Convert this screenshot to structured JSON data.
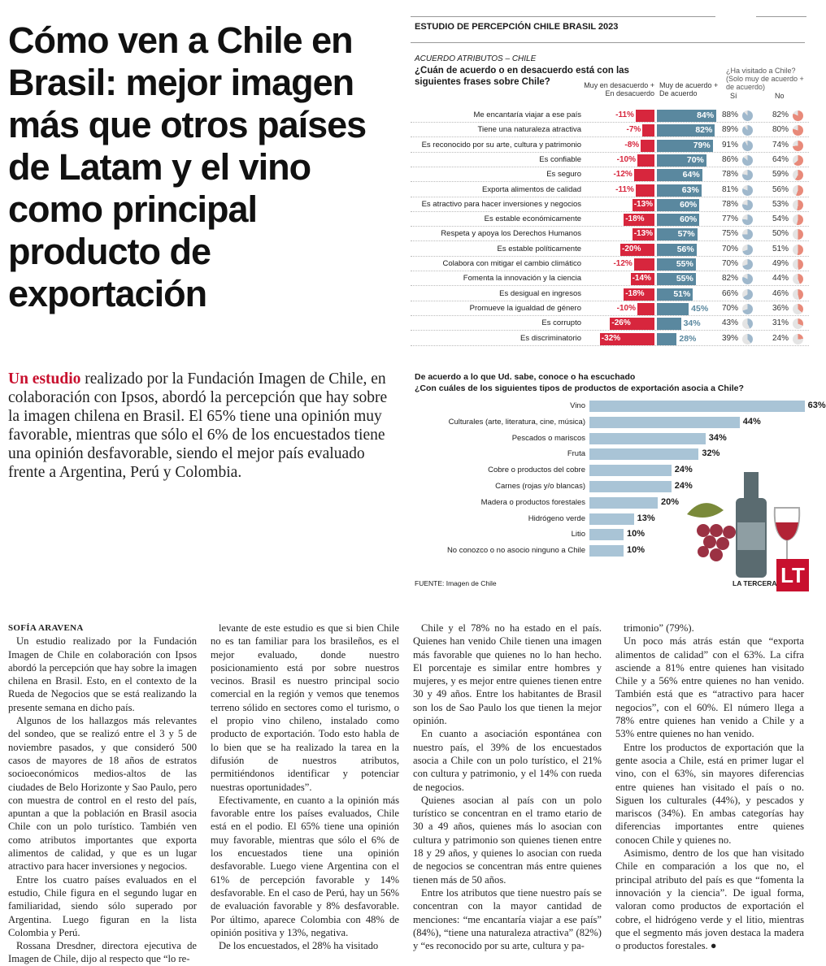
{
  "headline": "Cómo ven a Chile en Brasil: mejor imagen más que otros países de Latam y el vino como principal producto de exportación",
  "lead": {
    "kicker": "Un estudio",
    "text": " realizado por la Fundación Imagen de Chile, en colaboración con Ipsos, abordó la percepción que hay sobre la imagen chilena en Brasil. El 65% tiene una opinión muy favorable, mientras que sólo el 6% de los encuestados tiene una opinión desfavorable, siendo el mejor país evaluado frente a Argentina, Perú y Colombia."
  },
  "infographic": {
    "title": "ESTUDIO DE PERCEPCIÓN CHILE BRASIL 2023",
    "section": "ACUERDO ATRIBUTOS – CHILE",
    "question1": "¿Cuán de acuerdo o en desacuerdo está con las siguientes frases sobre Chile?",
    "col_neg": "Muy en desacuerdo + En desacuerdo",
    "col_pos": "Muy de acuerdo + De acuerdo",
    "col_visit": "¿Ha visitado a Chile? (Solo muy de acuerdo + de acuerdo)",
    "col_si": "Sí",
    "col_no": "No",
    "subtitle2": "De acuerdo a lo que Ud. sabe, conoce o ha escuchado",
    "question2": "¿Con cuáles de los siguientes tipos de productos de exportación asocia a Chile?",
    "source": "FUENTE: Imagen de Chile",
    "brand": "LA TERCERA",
    "logo": "LT",
    "colors": {
      "neg": "#d7263d",
      "pos": "#5a889f",
      "prod": "#a9c4d6",
      "pie_si": "#9fb8cc",
      "pie_no": "#e88a7a"
    }
  },
  "chart_data": [
    {
      "type": "bar",
      "title": "¿Cuán de acuerdo o en desacuerdo está con las siguientes frases sobre Chile?",
      "categories": [
        "Me encantaría viajar a ese país",
        "Tiene una naturaleza atractiva",
        "Es reconocido por su arte, cultura y patrimonio",
        "Es confiable",
        "Es seguro",
        "Exporta alimentos de calidad",
        "Es atractivo para hacer inversiones y negocios",
        "Es estable económicamente",
        "Respeta y apoya los Derechos Humanos",
        "Es estable políticamente",
        "Colabora con mitigar el cambio climático",
        "Fomenta la innovación y la ciencia",
        "Es desigual en ingresos",
        "Promueve la igualdad de género",
        "Es corrupto",
        "Es discriminatorio"
      ],
      "series": [
        {
          "name": "Muy en desacuerdo + En desacuerdo",
          "values": [
            -11,
            -7,
            -8,
            -10,
            -12,
            -11,
            -13,
            -18,
            -13,
            -20,
            -12,
            -14,
            -18,
            -10,
            -26,
            -32
          ]
        },
        {
          "name": "Muy de acuerdo + De acuerdo",
          "values": [
            84,
            82,
            79,
            70,
            64,
            63,
            60,
            60,
            57,
            56,
            55,
            55,
            51,
            45,
            34,
            28
          ]
        },
        {
          "name": "Sí ha visitado",
          "values": [
            88,
            89,
            91,
            86,
            78,
            81,
            78,
            77,
            75,
            70,
            70,
            82,
            66,
            70,
            43,
            39
          ]
        },
        {
          "name": "No ha visitado",
          "values": [
            82,
            80,
            74,
            64,
            59,
            56,
            53,
            54,
            50,
            51,
            49,
            44,
            46,
            36,
            31,
            24
          ]
        }
      ]
    },
    {
      "type": "bar",
      "title": "¿Con cuáles de los siguientes tipos de productos de exportación asocia a Chile?",
      "categories": [
        "Vino",
        "Culturales (arte, literatura, cine, música)",
        "Pescados o mariscos",
        "Fruta",
        "Cobre o productos del cobre",
        "Carnes (rojas y/o blancas)",
        "Madera o productos forestales",
        "Hidrógeno verde",
        "Litio",
        "No conozco o no asocio ninguno a Chile"
      ],
      "values": [
        63,
        44,
        34,
        32,
        24,
        24,
        20,
        13,
        10,
        10
      ]
    }
  ],
  "body": {
    "byline": "SOFÍA ARAVENA",
    "col1": [
      "Un estudio realizado por la Fundación Imagen de Chile en colaboración con Ipsos abordó la percepción que hay sobre la imagen chilena en Brasil. Esto, en el contexto de la Rueda de Negocios que se está realizando la presente semana en dicho país.",
      "Algunos de los hallazgos más relevantes del sondeo, que se realizó entre el 3 y 5 de noviembre pasados, y que consideró 500 casos de mayores de 18 años de estratos socioeconómicos medios-altos de las ciudades de Belo Horizonte y Sao Paulo, pero con muestra de control en el resto del país, apuntan a que la población en Brasil asocia Chile con un polo turístico. También ven como atributos importantes que exporta alimentos de calidad, y que es un lugar atractivo para hacer inversiones y negocios.",
      "Entre los cuatro países evaluados en el estudio, Chile figura en el segundo lugar en familiaridad, siendo sólo superado por Argentina. Luego figuran en la lista Colombia y Perú.",
      "Rossana Dresdner, directora ejecutiva de Imagen de Chile, dijo al respecto que “lo re-"
    ],
    "col2": [
      "levante de este estudio es que si bien Chile no es tan familiar para los brasileños, es el mejor evaluado, donde nuestro posicionamiento está por sobre nuestros vecinos. Brasil es nuestro principal socio comercial en la región y vemos que tenemos terreno sólido en sectores como el turismo, o el propio vino chileno, instalado como producto de exportación. Todo esto habla de lo bien que se ha realizado la tarea en la difusión de nuestros atributos, permitiéndonos identificar y potenciar nuestras oportunidades”.",
      "Efectivamente, en cuanto a la opinión más favorable entre los países evaluados, Chile está en el podio. El 65% tiene una opinión muy favorable, mientras que sólo el 6% de los encuestados tiene una opinión desfavorable. Luego viene Argentina con el 61% de percepción favorable y 14% desfavorable. En el caso de Perú, hay un 56% de evaluación favorable y 8% desfavorable. Por último, aparece Colombia con 48% de opinión positiva y 13%, negativa.",
      "De los encuestados, el 28% ha visitado"
    ],
    "col3": [
      "Chile y el 78% no ha estado en el país. Quienes han venido Chile tienen una imagen más favorable que quienes no lo han hecho. El porcentaje es similar entre hombres y mujeres, y es mejor entre quienes tienen entre 30 y 49 años. Entre los habitantes de Brasil son los de Sao Paulo los que tienen la mejor opinión.",
      "En cuanto a asociación espontánea con nuestro país, el 39% de los encuestados asocia a Chile con un polo turístico, el 21% con cultura y patrimonio, y el 14% con rueda de negocios.",
      "Quienes asocian al país con un polo turístico se concentran en el tramo etario de 30 a 49 años, quienes más lo asocian con cultura y patrimonio son quienes tienen entre 18 y 29 años, y quienes lo asocian con rueda de negocios se concentran más entre quienes tienen más de 50 años.",
      "Entre los atributos que tiene nuestro país se concentran con la mayor cantidad de menciones: “me encantaría viajar a ese país” (84%), “tiene una naturaleza atractiva” (82%) y “es reconocido por su arte, cultura y pa-"
    ],
    "col4": [
      "trimonio” (79%).",
      "Un poco más atrás están que “exporta alimentos de calidad” con el 63%. La cifra asciende a 81% entre quienes han visitado Chile y a 56% entre quienes no han venido. También está que es “atractivo para hacer negocios”, con el 60%. El número llega a 78% entre quienes han venido a Chile y a 53% entre quienes no han venido.",
      "Entre los productos de exportación que la gente asocia a Chile, está en primer lugar el vino, con el 63%, sin mayores diferencias entre quienes han visitado el país o no. Siguen los culturales (44%), y pescados y mariscos (34%). En ambas categorías hay diferencias importantes entre quienes conocen Chile y quienes no.",
      "Asimismo, dentro de los que han visitado Chile en comparación a los que no, el principal atributo del país es que “fomenta la innovación y la ciencia”. De igual forma, valoran como productos de exportación el cobre, el hidrógeno verde y el litio, mientras que el segmento más joven destaca la madera o productos forestales."
    ]
  }
}
